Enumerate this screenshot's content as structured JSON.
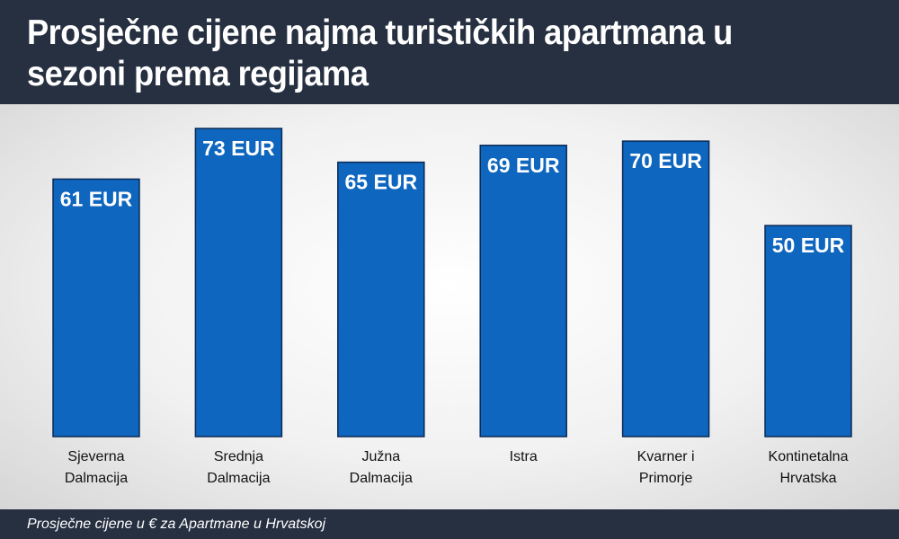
{
  "header": {
    "title": "Prosječne cijene najma turističkih apartmana u sezoni prema regijama"
  },
  "footer": {
    "text": "Prosječne cijene u € za Apartmane u Hrvatskoj"
  },
  "colors": {
    "bar": "#0f66be",
    "bar_border": "#0b2a55",
    "header_bg": "#263041"
  },
  "chart_data": {
    "type": "bar",
    "title": "Prosječne cijene najma turističkih apartmana u sezoni prema regijama",
    "categories": [
      [
        "Sjeverna",
        "Dalmacija"
      ],
      [
        "Srednja",
        "Dalmacija"
      ],
      [
        "Južna",
        "Dalmacija"
      ],
      [
        "Istra"
      ],
      [
        "Kvarner i",
        "Primorje"
      ],
      [
        "Kontinetalna",
        "Hrvatska"
      ]
    ],
    "values": [
      61,
      73,
      65,
      69,
      70,
      50
    ],
    "value_labels": [
      "61 EUR",
      "73 EUR",
      "65 EUR",
      "69 EUR",
      "70 EUR",
      "50 EUR"
    ],
    "unit": "EUR",
    "ylim": [
      0,
      73
    ],
    "grid": false,
    "legend": "none"
  }
}
